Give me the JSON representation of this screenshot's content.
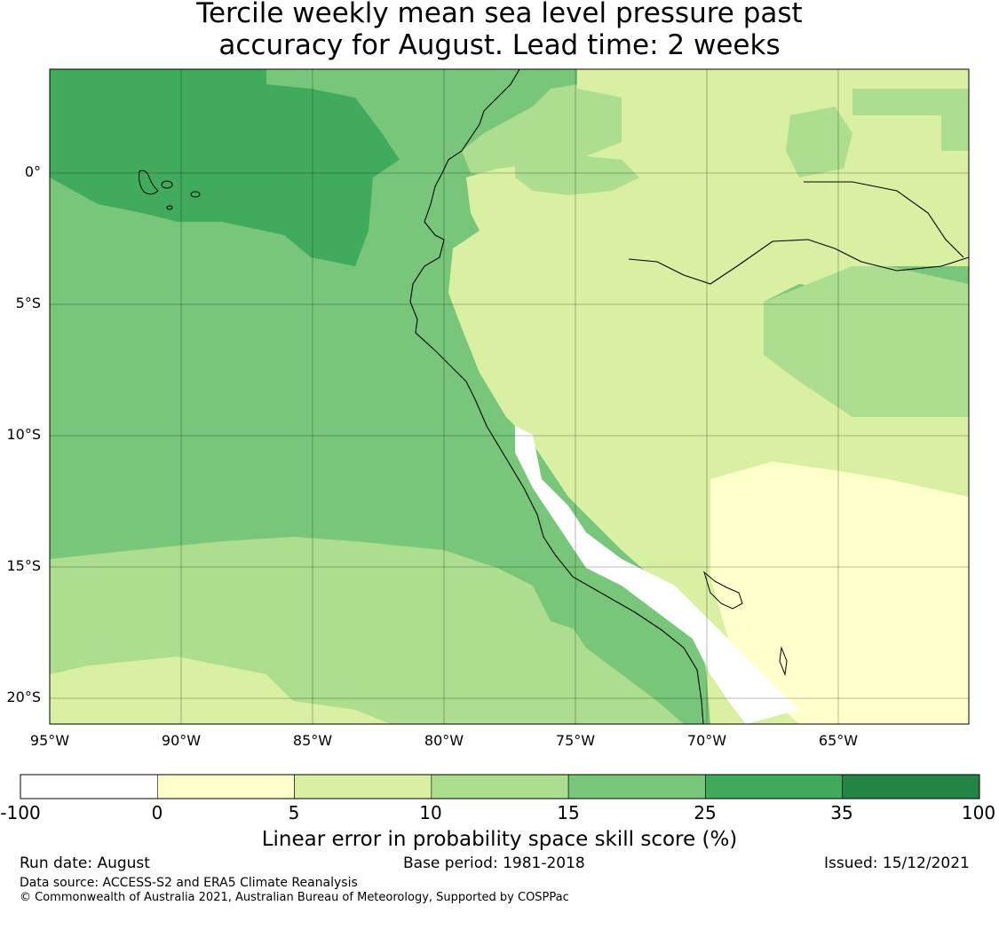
{
  "title": {
    "line1": "Tercile weekly mean sea level pressure past",
    "line2": "accuracy for August. Lead time: 2 weeks"
  },
  "map": {
    "lat_labels": [
      "0°",
      "5°S",
      "10°S",
      "15°S",
      "20°S"
    ],
    "lon_labels": [
      "95°W",
      "90°W",
      "85°W",
      "80°W",
      "75°W",
      "70°W",
      "65°W"
    ]
  },
  "colorbar": {
    "tick_labels": [
      "-100",
      "0",
      "5",
      "10",
      "15",
      "25",
      "35",
      "100"
    ],
    "colors": [
      "#ffffff",
      "#ffffcc",
      "#d9f0a3",
      "#addd8e",
      "#78c679",
      "#41ab5d",
      "#238443"
    ],
    "label": "Linear error in probability space skill score (%)"
  },
  "footer": {
    "run_date": "Run date: August",
    "base_period": "Base period: 1981-2018",
    "issued": "Issued: 15/12/2021",
    "data_source": "Data source: ACCESS-S2 and ERA5 Climate Reanalysis",
    "copyright": "© Commonwealth of Australia 2021, Australian Bureau of Meteorology, Supported by COSPPac"
  }
}
